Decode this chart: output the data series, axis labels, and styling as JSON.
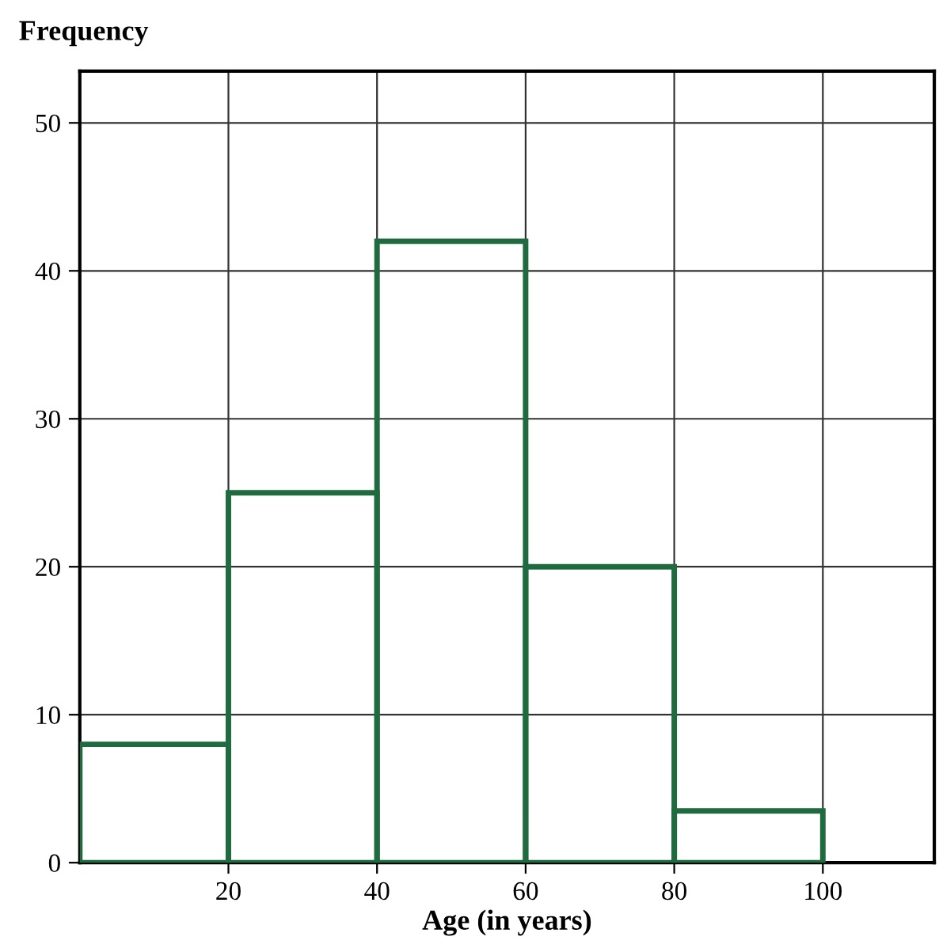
{
  "chart_data": {
    "type": "histogram",
    "ylabel": "Frequency",
    "xlabel": "Age (in years)",
    "bins": [
      0,
      20,
      40,
      60,
      80,
      100
    ],
    "values": [
      8,
      25,
      42,
      20,
      3.5
    ],
    "color": "#1f6b3f",
    "xlim": [
      0,
      115
    ],
    "ylim": [
      0,
      53.5
    ],
    "xticks": [
      20,
      40,
      60,
      80,
      100
    ],
    "yticks": [
      0,
      10,
      20,
      30,
      40,
      50
    ],
    "grid": true
  }
}
